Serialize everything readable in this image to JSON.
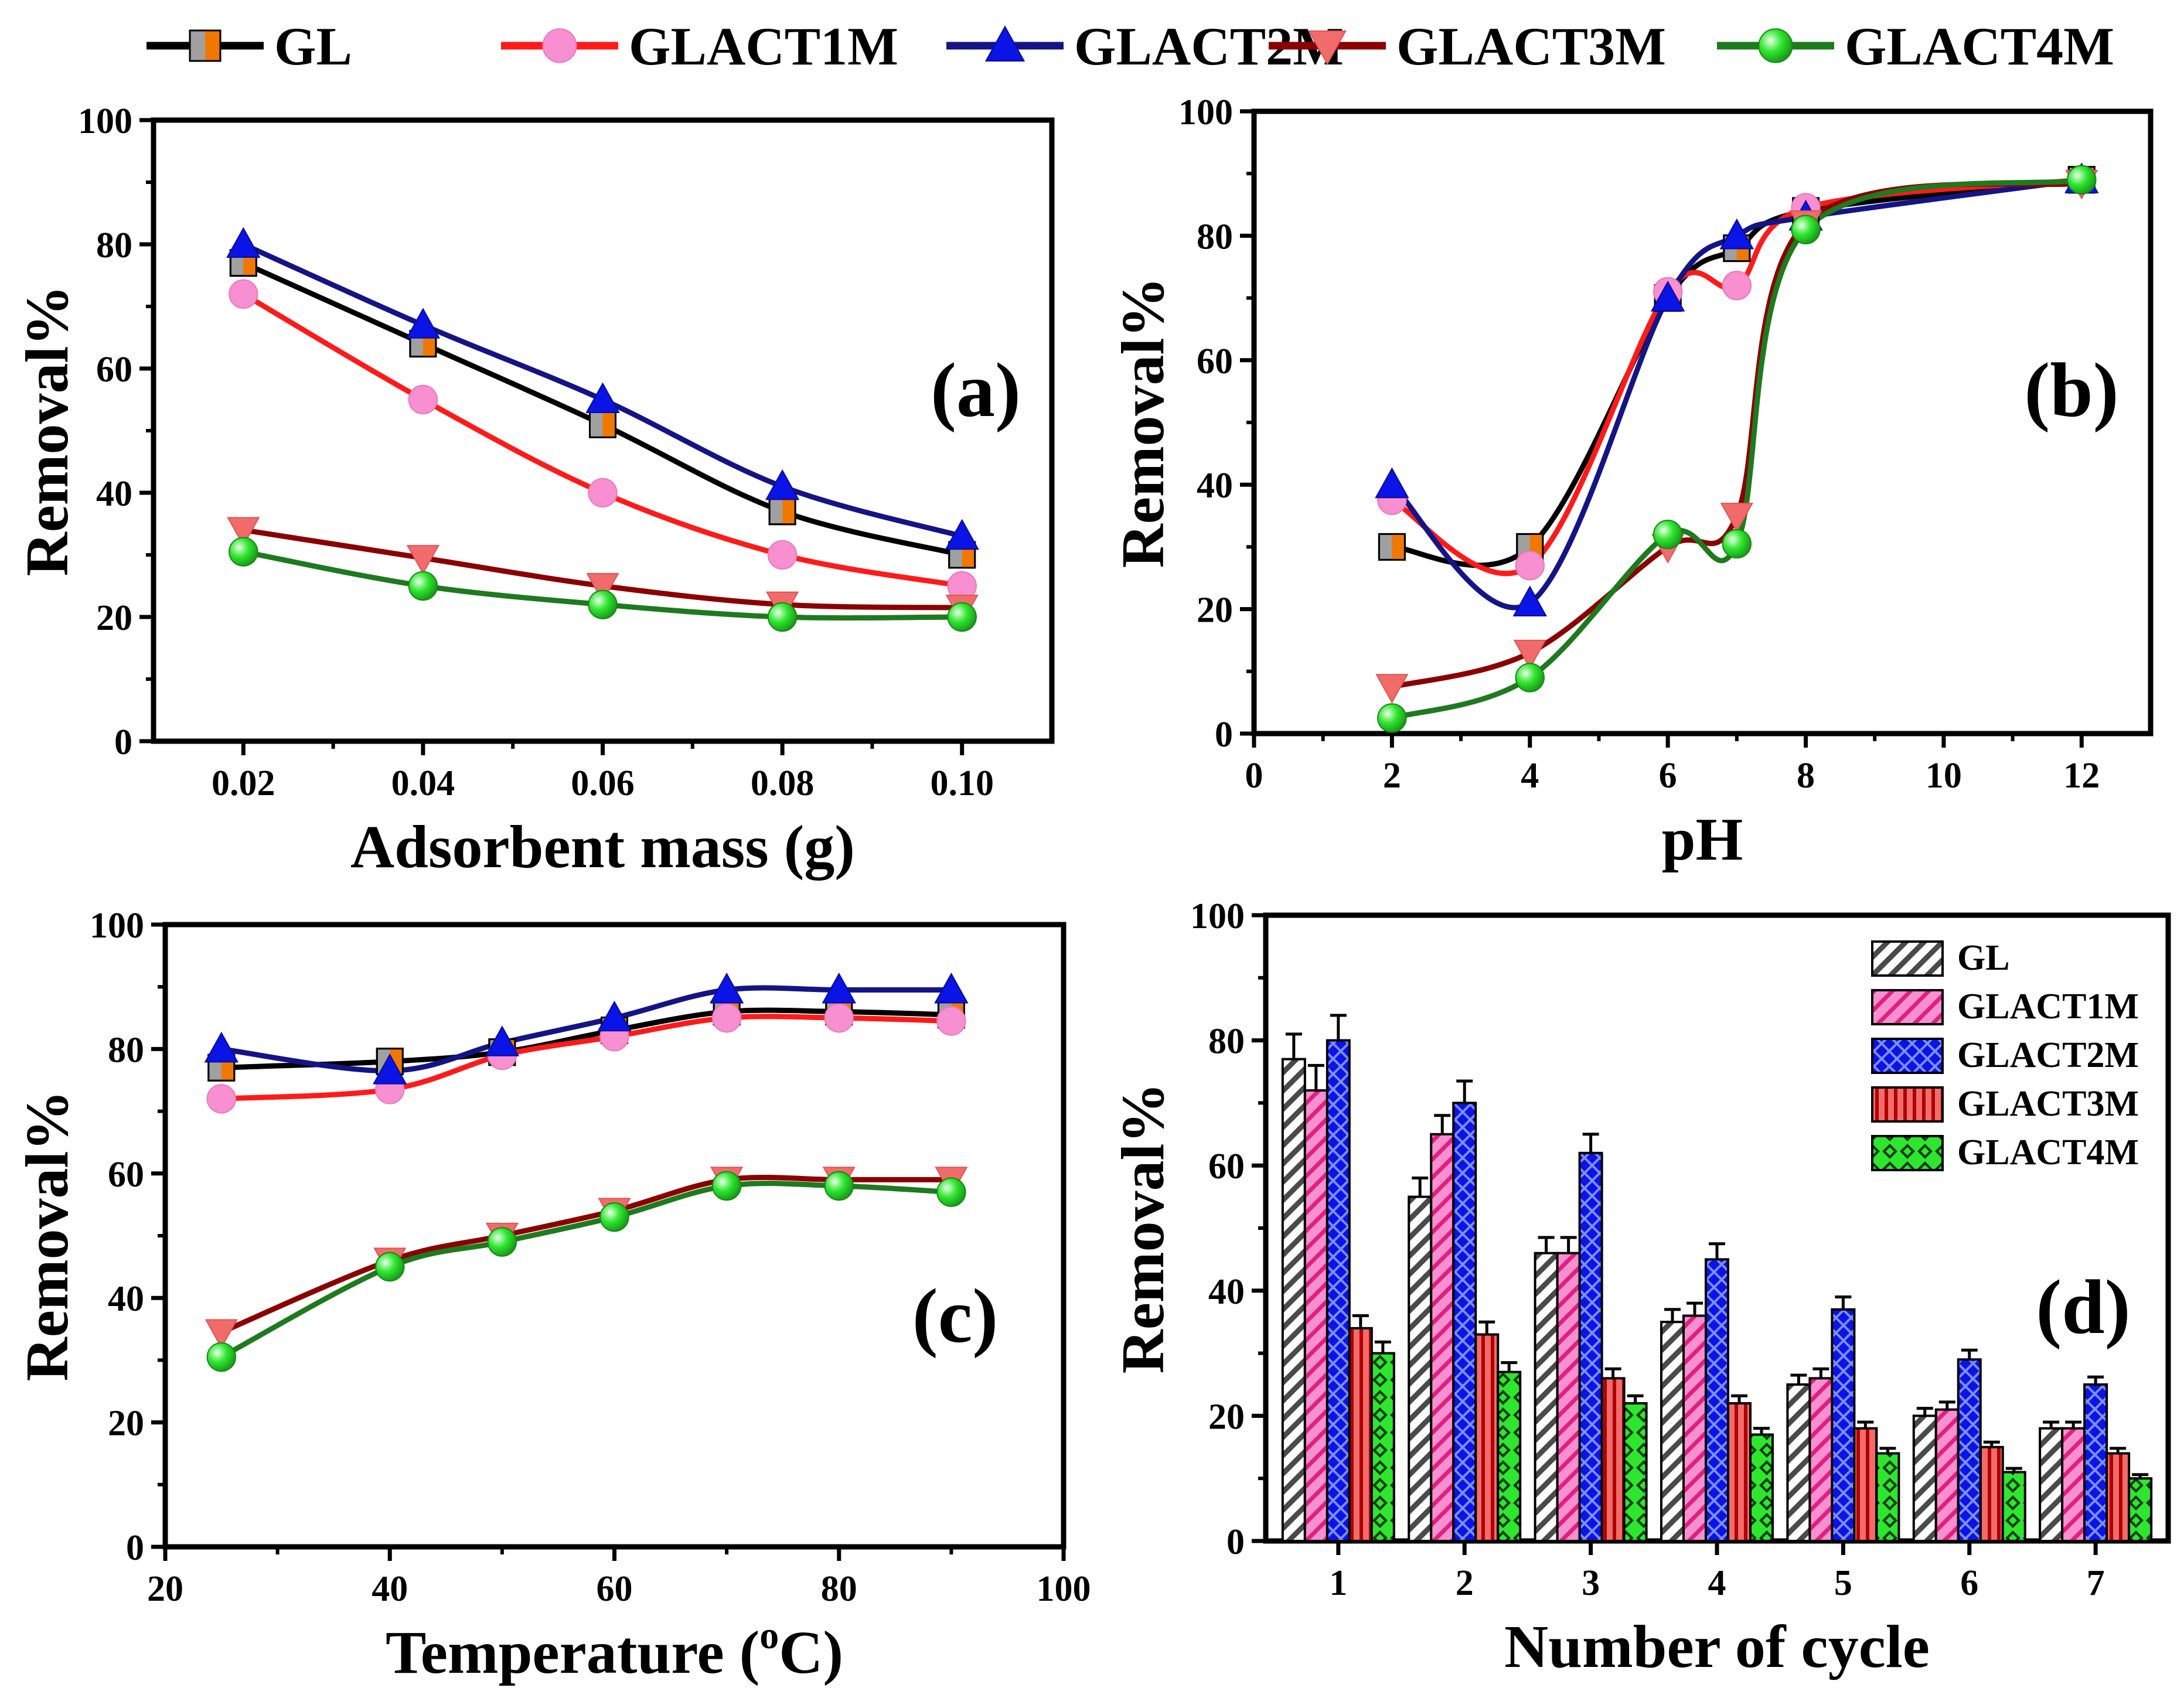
{
  "legend": {
    "items": [
      {
        "name": "GL",
        "color": "#000000",
        "marker": "square-half-orange"
      },
      {
        "name": "GLACT1M",
        "color": "#ff1a1a",
        "marker": "circle-pink"
      },
      {
        "name": "GLACT2M",
        "color": "#141487",
        "marker": "triangle-up-blue"
      },
      {
        "name": "GLACT3M",
        "color": "#8b0000",
        "marker": "triangle-down-salmon"
      },
      {
        "name": "GLACT4M",
        "color": "#1e7a1e",
        "marker": "sphere-green"
      }
    ]
  },
  "series_styles": {
    "GL": {
      "line": "#000000",
      "fill": "#a0a0a0",
      "fill2": "#f07800"
    },
    "GLACT1M": {
      "line": "#ff1a1a",
      "fill": "#f78fd0"
    },
    "GLACT2M": {
      "line": "#141487",
      "fill": "#0a14e6"
    },
    "GLACT3M": {
      "line": "#8b0000",
      "fill": "#f26b6b"
    },
    "GLACT4M": {
      "line": "#1e7a1e",
      "fill": "#2fe62f"
    }
  },
  "chart_data": [
    {
      "id": "a",
      "type": "line",
      "panel_label": "(a)",
      "xlabel": "Adsorbent mass (g)",
      "ylabel": "Removal%",
      "xlim": [
        0.01,
        0.11
      ],
      "ylim": [
        0,
        100
      ],
      "xticks": [
        "0.02",
        "0.04",
        "0.06",
        "0.08",
        "0.10"
      ],
      "xtick_values": [
        0.02,
        0.04,
        0.06,
        0.08,
        0.1
      ],
      "yticks": [
        "0",
        "20",
        "40",
        "60",
        "80",
        "100"
      ],
      "ytick_values": [
        0,
        20,
        40,
        60,
        80,
        100
      ],
      "x": [
        0.02,
        0.04,
        0.06,
        0.08,
        0.1
      ],
      "series": [
        {
          "name": "GL",
          "values": [
            77,
            64,
            51,
            37,
            30
          ]
        },
        {
          "name": "GLACT1M",
          "values": [
            72,
            55,
            40,
            30,
            25
          ]
        },
        {
          "name": "GLACT2M",
          "values": [
            80,
            67,
            55,
            41,
            33
          ]
        },
        {
          "name": "GLACT3M",
          "values": [
            34,
            29.5,
            25,
            22,
            21.5
          ]
        },
        {
          "name": "GLACT4M",
          "values": [
            30.5,
            25,
            22,
            20,
            20
          ]
        }
      ]
    },
    {
      "id": "b",
      "type": "line",
      "panel_label": "(b)",
      "xlabel": "pH",
      "ylabel": "Removal%",
      "xlim": [
        0,
        13
      ],
      "ylim": [
        0,
        100
      ],
      "xticks": [
        "0",
        "2",
        "4",
        "6",
        "8",
        "10",
        "12"
      ],
      "xtick_values": [
        0,
        2,
        4,
        6,
        8,
        10,
        12
      ],
      "yticks": [
        "0",
        "20",
        "40",
        "60",
        "80",
        "100"
      ],
      "ytick_values": [
        0,
        20,
        40,
        60,
        80,
        100
      ],
      "x": [
        2,
        4,
        6,
        7,
        8,
        12
      ],
      "series": [
        {
          "name": "GL",
          "values": [
            30,
            30,
            70,
            78,
            84,
            89
          ]
        },
        {
          "name": "GLACT1M",
          "values": [
            37.5,
            27,
            71,
            72,
            84.5,
            89
          ]
        },
        {
          "name": "GLACT2M",
          "values": [
            40,
            21,
            70,
            80,
            83,
            89
          ]
        },
        {
          "name": "GLACT3M",
          "values": [
            7.5,
            13,
            30,
            35,
            82,
            88.5
          ]
        },
        {
          "name": "GLACT4M",
          "values": [
            2.5,
            9,
            32,
            30.5,
            81,
            89
          ]
        }
      ]
    },
    {
      "id": "c",
      "type": "line",
      "panel_label": "(c)",
      "xlabel_main": "Temperature (",
      "xlabel_sup": "o",
      "xlabel_end": "C)",
      "ylabel": "Removal%",
      "xlim": [
        20,
        100
      ],
      "ylim": [
        0,
        100
      ],
      "xticks": [
        "20",
        "40",
        "60",
        "80",
        "100"
      ],
      "xtick_values": [
        20,
        40,
        60,
        80,
        100
      ],
      "yticks": [
        "0",
        "20",
        "40",
        "60",
        "80",
        "100"
      ],
      "ytick_values": [
        0,
        20,
        40,
        60,
        80,
        100
      ],
      "x": [
        25,
        40,
        50,
        60,
        70,
        80,
        90
      ],
      "series": [
        {
          "name": "GL",
          "values": [
            77,
            78,
            79.5,
            83,
            86,
            86,
            85.5
          ]
        },
        {
          "name": "GLACT1M",
          "values": [
            72,
            73.5,
            79,
            82,
            85,
            85,
            84.5
          ]
        },
        {
          "name": "GLACT2M",
          "values": [
            80,
            76.5,
            81,
            85,
            89.5,
            89.5,
            89.5
          ]
        },
        {
          "name": "GLACT3M",
          "values": [
            34.5,
            46,
            50,
            54,
            59,
            59,
            59
          ]
        },
        {
          "name": "GLACT4M",
          "values": [
            30.5,
            45,
            49,
            53,
            58,
            58,
            57
          ]
        }
      ]
    },
    {
      "id": "d",
      "type": "bar",
      "panel_label": "(d)",
      "xlabel": "Number of cycle",
      "ylabel": "Removal%",
      "ylim": [
        0,
        100
      ],
      "yticks": [
        "0",
        "20",
        "40",
        "60",
        "80",
        "100"
      ],
      "ytick_values": [
        0,
        20,
        40,
        60,
        80,
        100
      ],
      "categories": [
        "1",
        "2",
        "3",
        "4",
        "5",
        "6",
        "7"
      ],
      "series": [
        {
          "name": "GL",
          "values": [
            77,
            55,
            46,
            35,
            25,
            20,
            18
          ],
          "errors": [
            4,
            3,
            2.5,
            2,
            1.5,
            1.2,
            1
          ]
        },
        {
          "name": "GLACT1M",
          "values": [
            72,
            65,
            46,
            36,
            26,
            21,
            18
          ],
          "errors": [
            4,
            3,
            2.5,
            2,
            1.5,
            1.2,
            1
          ]
        },
        {
          "name": "GLACT2M",
          "values": [
            80,
            70,
            62,
            45,
            37,
            29,
            25
          ],
          "errors": [
            4,
            3.5,
            3,
            2.5,
            2,
            1.5,
            1.2
          ]
        },
        {
          "name": "GLACT3M",
          "values": [
            34,
            33,
            26,
            22,
            18,
            15,
            14
          ],
          "errors": [
            2,
            2,
            1.5,
            1.2,
            1,
            0.8,
            0.8
          ]
        },
        {
          "name": "GLACT4M",
          "values": [
            30,
            27,
            22,
            17,
            14,
            11,
            10
          ],
          "errors": [
            1.8,
            1.5,
            1.2,
            1,
            0.8,
            0.6,
            0.6
          ]
        }
      ],
      "legend": [
        "GL",
        "GLACT1M",
        "GLACT2M",
        "GLACT3M",
        "GLACT4M"
      ],
      "legend_position": "top-right"
    }
  ]
}
